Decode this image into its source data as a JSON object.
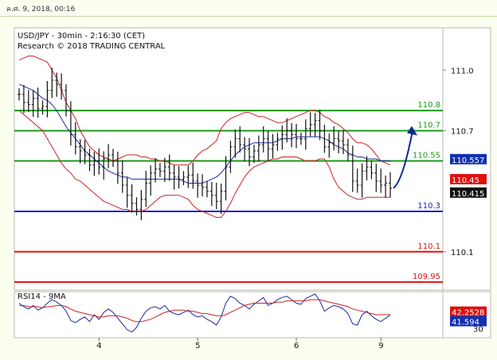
{
  "header": {
    "date_text": "ค.ศ. 9, 2018, 00:16"
  },
  "chart_data": [
    {
      "type": "line",
      "title": "USD/JPY - 30min - 2:16:30 (CET)",
      "subtitle": "Research © 2018 TRADING CENTRAL",
      "ylim": [
        109.91,
        111.21
      ],
      "y_ticks": [
        "111.0",
        "110.7",
        "110.1"
      ],
      "x_ticks": [
        "4",
        "5",
        "6",
        "9"
      ],
      "levels": [
        {
          "value": 110.8,
          "label": "110.8",
          "color": "#1a9a1a"
        },
        {
          "value": 110.7,
          "label": "110.7",
          "color": "#1a9a1a"
        },
        {
          "value": 110.55,
          "label": "110.55",
          "color": "#1a9a1a"
        },
        {
          "value": 110.3,
          "label": "110.3",
          "color": "#2020cc"
        },
        {
          "value": 110.1,
          "label": "110.1",
          "color": "#dd1111"
        },
        {
          "value": 109.95,
          "label": "109.95",
          "color": "#dd1111"
        }
      ],
      "price_tags": [
        {
          "value": "110.557",
          "color": "#1030b0"
        },
        {
          "value": "110.45",
          "color": "#dd1111"
        },
        {
          "value": "110.415",
          "color": "#111111"
        }
      ],
      "series": [
        {
          "values": [
            110.88,
            110.84,
            110.83,
            110.86,
            110.81,
            110.82,
            110.9,
            110.95,
            110.93,
            110.9,
            110.8,
            110.68,
            110.62,
            110.6,
            110.58,
            110.53,
            110.55,
            110.52,
            110.56,
            110.58,
            110.55,
            110.49,
            110.43,
            110.38,
            110.34,
            110.31,
            110.36,
            110.44,
            110.49,
            110.51,
            110.5,
            110.52,
            110.49,
            110.47,
            110.46,
            110.47,
            110.48,
            110.45,
            110.43,
            110.42,
            110.4,
            110.38,
            110.35,
            110.4,
            110.52,
            110.62,
            110.66,
            110.63,
            110.61,
            110.57,
            110.6,
            110.63,
            110.66,
            110.61,
            110.63,
            110.66,
            110.68,
            110.7,
            110.68,
            110.66,
            110.66,
            110.71,
            110.73,
            110.75,
            110.7,
            110.62,
            110.64,
            110.66,
            110.65,
            110.63,
            110.58,
            110.45,
            110.43,
            110.5,
            110.52,
            110.49,
            110.45,
            110.43,
            110.44,
            110.415
          ]
        }
      ],
      "bollinger": {
        "upper": [
          111.05,
          111.06,
          111.07,
          111.07,
          111.06,
          111.05,
          111.04,
          111.0,
          110.96,
          110.9,
          110.84,
          110.8,
          110.76,
          110.7,
          110.66,
          110.62,
          110.6,
          110.58,
          110.57,
          110.56,
          110.55,
          110.56,
          110.57,
          110.58,
          110.58,
          110.58,
          110.57,
          110.57,
          110.56,
          110.56,
          110.55,
          110.55,
          110.54,
          110.53,
          110.53,
          110.53,
          110.53,
          110.55,
          110.58,
          110.6,
          110.61,
          110.63,
          110.65,
          110.71,
          110.74,
          110.76,
          110.77,
          110.78,
          110.79,
          110.79,
          110.78,
          110.77,
          110.77,
          110.76,
          110.75,
          110.74,
          110.74,
          110.75,
          110.76,
          110.77,
          110.78,
          110.79,
          110.8,
          110.8,
          110.79,
          110.77,
          110.76,
          110.74,
          110.73,
          110.71,
          110.69,
          110.66,
          110.64,
          110.64,
          110.63,
          110.61,
          110.58,
          110.55,
          110.54,
          110.53
        ],
        "lower": [
          110.8,
          110.78,
          110.76,
          110.74,
          110.72,
          110.7,
          110.66,
          110.62,
          110.58,
          110.54,
          110.51,
          110.49,
          110.46,
          110.45,
          110.43,
          110.41,
          110.39,
          110.37,
          110.35,
          110.34,
          110.33,
          110.32,
          110.31,
          110.31,
          110.3,
          110.3,
          110.3,
          110.31,
          110.33,
          110.35,
          110.37,
          110.38,
          110.38,
          110.38,
          110.38,
          110.37,
          110.36,
          110.33,
          110.31,
          110.3,
          110.29,
          110.28,
          110.27,
          110.27,
          110.3,
          110.34,
          110.39,
          110.43,
          110.47,
          110.5,
          110.52,
          110.53,
          110.54,
          110.55,
          110.56,
          110.56,
          110.57,
          110.57,
          110.57,
          110.57,
          110.56,
          110.55,
          110.55,
          110.55,
          110.56,
          110.56,
          110.52,
          110.46,
          110.42,
          110.4,
          110.38,
          110.37,
          110.36,
          110.36,
          110.37,
          110.37,
          110.37,
          110.37,
          110.37,
          110.37
        ],
        "ma": [
          110.93,
          110.92,
          110.91,
          110.9,
          110.88,
          110.86,
          110.85,
          110.83,
          110.8,
          110.76,
          110.72,
          110.69,
          110.66,
          110.63,
          110.6,
          110.58,
          110.56,
          110.54,
          110.52,
          110.5,
          110.49,
          110.48,
          110.47,
          110.47,
          110.46,
          110.46,
          110.46,
          110.46,
          110.46,
          110.46,
          110.46,
          110.46,
          110.46,
          110.46,
          110.46,
          110.45,
          110.44,
          110.44,
          110.44,
          110.44,
          110.45,
          110.46,
          110.47,
          110.49,
          110.52,
          110.55,
          110.58,
          110.6,
          110.62,
          110.63,
          110.64,
          110.64,
          110.64,
          110.64,
          110.64,
          110.65,
          110.66,
          110.66,
          110.66,
          110.67,
          110.67,
          110.67,
          110.67,
          110.67,
          110.67,
          110.66,
          110.65,
          110.63,
          110.62,
          110.61,
          110.59,
          110.58,
          110.57,
          110.57,
          110.56,
          110.56,
          110.56,
          110.55,
          110.55,
          110.55
        ]
      },
      "projection": {
        "from": 110.415,
        "to": 110.7
      }
    },
    {
      "type": "line",
      "title": "RSI14 - 9MA",
      "ylim": [
        22,
        62
      ],
      "y_ticks": [
        "30"
      ],
      "price_tags": [
        {
          "value": "42.2528",
          "color": "#dd1111"
        },
        {
          "value": "41.594",
          "color": "#1030b0"
        }
      ],
      "series": [
        {
          "values": [
            52,
            49,
            47,
            50,
            46,
            48,
            52,
            55,
            53,
            50,
            45,
            37,
            35,
            38,
            40,
            36,
            42,
            38,
            44,
            47,
            44,
            39,
            34,
            29,
            27,
            31,
            39,
            45,
            48,
            49,
            47,
            50,
            45,
            43,
            42,
            44,
            46,
            42,
            40,
            41,
            38,
            36,
            33,
            40,
            52,
            58,
            56,
            52,
            50,
            47,
            51,
            54,
            57,
            50,
            52,
            55,
            57,
            58,
            55,
            52,
            51,
            56,
            58,
            60,
            54,
            45,
            48,
            50,
            49,
            47,
            43,
            34,
            33,
            42,
            45,
            41,
            38,
            36,
            39,
            41.594
          ]
        },
        {
          "values": [
            50,
            50,
            49,
            49,
            49,
            48,
            49,
            49,
            50,
            50,
            49,
            47,
            45,
            44,
            43,
            42,
            41,
            40,
            40,
            41,
            41,
            41,
            40,
            39,
            37,
            36,
            36,
            37,
            38,
            40,
            42,
            44,
            45,
            46,
            46,
            46,
            45,
            45,
            44,
            43,
            43,
            42,
            41,
            41,
            42,
            44,
            46,
            48,
            50,
            51,
            52,
            52,
            52,
            52,
            52,
            53,
            53,
            54,
            54,
            54,
            54,
            54,
            55,
            55,
            55,
            54,
            53,
            52,
            51,
            50,
            49,
            47,
            46,
            45,
            44,
            43,
            42,
            42,
            42,
            42.2528
          ]
        }
      ]
    }
  ]
}
